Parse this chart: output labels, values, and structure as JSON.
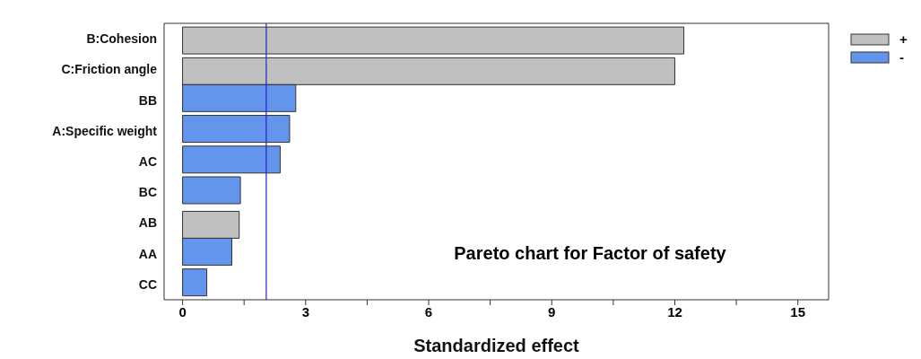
{
  "chart_data": {
    "type": "bar",
    "orientation": "horizontal",
    "title": "Pareto chart for Factor of safety",
    "xlabel": "Standardized effect",
    "categories": [
      "B:Cohesion",
      "C:Friction angle",
      "BB",
      "A:Specific weight",
      "AC",
      "BC",
      "AB",
      "AA",
      "CC"
    ],
    "series": [
      {
        "name": "+",
        "color": "#c0c0c0",
        "values": [
          12.22,
          12.0,
          null,
          null,
          null,
          null,
          1.38,
          null,
          null
        ]
      },
      {
        "name": "-",
        "color": "#6495ed",
        "values": [
          null,
          null,
          2.76,
          2.61,
          2.38,
          1.41,
          null,
          1.2,
          0.59
        ]
      }
    ],
    "xlim": [
      -0.45,
      15.75
    ],
    "xticks": [
      0,
      {
        "value": 1.5,
        "label": null
      },
      3,
      {
        "value": 4.5,
        "label": null
      },
      6,
      {
        "value": 7.5,
        "label": null
      },
      9,
      {
        "value": 10.5,
        "label": null
      },
      12,
      {
        "value": 13.5,
        "label": null
      },
      15
    ],
    "ref_lines": [
      {
        "axis": "x",
        "value": 2.04,
        "color": "#2222cc"
      }
    ],
    "legend": "top right",
    "grid": false
  }
}
